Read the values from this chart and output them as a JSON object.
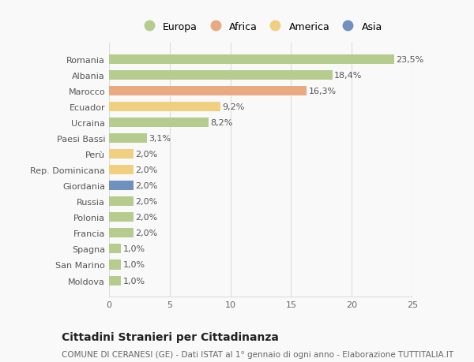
{
  "countries": [
    "Romania",
    "Albania",
    "Marocco",
    "Ecuador",
    "Ucraina",
    "Paesi Bassi",
    "Perù",
    "Rep. Dominicana",
    "Giordania",
    "Russia",
    "Polonia",
    "Francia",
    "Spagna",
    "San Marino",
    "Moldova"
  ],
  "values": [
    23.5,
    18.4,
    16.3,
    9.2,
    8.2,
    3.1,
    2.0,
    2.0,
    2.0,
    2.0,
    2.0,
    2.0,
    1.0,
    1.0,
    1.0
  ],
  "labels": [
    "23,5%",
    "18,4%",
    "16,3%",
    "9,2%",
    "8,2%",
    "3,1%",
    "2,0%",
    "2,0%",
    "2,0%",
    "2,0%",
    "2,0%",
    "2,0%",
    "1,0%",
    "1,0%",
    "1,0%"
  ],
  "colors": [
    "#b5cc8e",
    "#b5cc8e",
    "#e8aa80",
    "#f0d080",
    "#b5cc8e",
    "#b5cc8e",
    "#f0d080",
    "#f0d080",
    "#7090c0",
    "#b5cc8e",
    "#b5cc8e",
    "#b5cc8e",
    "#b5cc8e",
    "#b5cc8e",
    "#b5cc8e"
  ],
  "legend_labels": [
    "Europa",
    "Africa",
    "America",
    "Asia"
  ],
  "legend_colors": [
    "#b5cc8e",
    "#e8aa80",
    "#f0d080",
    "#7090c0"
  ],
  "title": "Cittadini Stranieri per Cittadinanza",
  "subtitle": "COMUNE DI CERANESI (GE) - Dati ISTAT al 1° gennaio di ogni anno - Elaborazione TUTTITALIA.IT",
  "xlim": [
    0,
    25
  ],
  "xticks": [
    0,
    5,
    10,
    15,
    20,
    25
  ],
  "background_color": "#f9f9f9",
  "bar_height": 0.6,
  "grid_color": "#dddddd",
  "label_fontsize": 8,
  "tick_fontsize": 8,
  "title_fontsize": 10,
  "subtitle_fontsize": 7.5
}
